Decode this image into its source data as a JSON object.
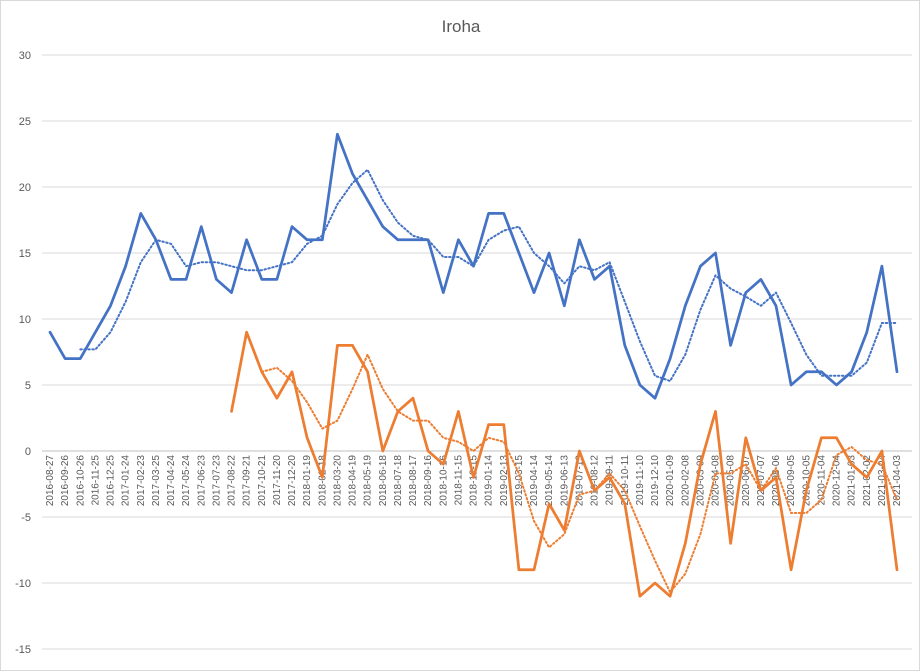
{
  "chart_data": {
    "type": "line",
    "title": "Iroha",
    "xlabel": "",
    "ylabel": "",
    "ylim": [
      -15,
      30
    ],
    "yticks": [
      -15,
      -10,
      -5,
      0,
      5,
      10,
      15,
      20,
      25,
      30
    ],
    "grid": true,
    "legend": "none",
    "x_tick_labels": [
      "2016-08-27",
      "2016-09-26",
      "2016-10-26",
      "2016-11-25",
      "2016-12-25",
      "2017-01-24",
      "2017-02-23",
      "2017-03-25",
      "2017-04-24",
      "2017-05-24",
      "2017-06-23",
      "2017-07-23",
      "2017-08-22",
      "2017-09-21",
      "2017-10-21",
      "2017-11-20",
      "2017-12-20",
      "2018-01-19",
      "2018-02-18",
      "2018-03-20",
      "2018-04-19",
      "2018-05-19",
      "2018-06-18",
      "2018-07-18",
      "2018-08-17",
      "2018-09-16",
      "2018-10-16",
      "2018-11-15",
      "2018-12-15",
      "2019-01-14",
      "2019-02-13",
      "2019-03-15",
      "2019-04-14",
      "2019-05-14",
      "2019-06-13",
      "2019-07-13",
      "2019-08-12",
      "2019-09-11",
      "2019-10-11",
      "2019-11-10",
      "2019-12-10",
      "2020-01-09",
      "2020-02-08",
      "2020-03-09",
      "2020-04-08",
      "2020-05-08",
      "2020-06-07",
      "2020-07-07",
      "2020-08-06",
      "2020-09-05",
      "2020-10-05",
      "2020-11-04",
      "2020-12-04",
      "2021-01-03",
      "2021-02-02",
      "2021-03-04",
      "2021-04-03"
    ],
    "x_tick_labels_visible": [
      "2016-08-27",
      "2016-09-26",
      "2016-10-26",
      "2016-11-25",
      "2016-12-25",
      "2017-01-24",
      "2017-02-23",
      "2017-03-25",
      "2017-04-24",
      "2017-05-24",
      "2017-06-23",
      "2017-07-23",
      "2017-08-22",
      "2017-09-21",
      "2017-10-21",
      "2017-11-20",
      "2017-12-20",
      "2018-01-19",
      "2018-02-18",
      "2018-03-20",
      "2018-04-19",
      "2018-05-19",
      "2018-06-18",
      "2018-07-18",
      "2018-08-17",
      "2018-09-16",
      "2018-10-16",
      "2018-11-15",
      "2018-12-15",
      "2019-01-14",
      "2019-02-13",
      "2019-03-15",
      "2019-04-14",
      "2019-05-14",
      "2019-06-13",
      "2019-07-13",
      "2019-08-12",
      "2019-09-11",
      "2019-10-11",
      "2019-11-10",
      "2019-12-10",
      "2020-01-09",
      "2020-02-08",
      "2020-03-09",
      "2020-04-08",
      "2020-05-08",
      "2020-06-07",
      "2020-07-07",
      "2020-08-06",
      "2020-09-05",
      "2020-10-05",
      "2020-11-04",
      "2020-12-04",
      "2021-01-03",
      "2021-02-02",
      "2021-03-04",
      "2021-04-03"
    ],
    "series": [
      {
        "color": "#4472C4",
        "style": "solid",
        "values": [
          9,
          7,
          7,
          9,
          11,
          14,
          18,
          16,
          13,
          13,
          17,
          13,
          12,
          16,
          13,
          13,
          17,
          16,
          16,
          24,
          21,
          19,
          17,
          16,
          16,
          16,
          12,
          16,
          14,
          18,
          18,
          15,
          12,
          15,
          11,
          16,
          13,
          14,
          8,
          5,
          4,
          7,
          11,
          14,
          15,
          8,
          12,
          13,
          11,
          5,
          6,
          6,
          5,
          6,
          9,
          14,
          6
        ]
      },
      {
        "color": "#4472C4",
        "style": "dotted",
        "values": [
          null,
          null,
          7.7,
          7.7,
          9,
          11.3,
          14.3,
          16,
          15.7,
          14,
          14.3,
          14.3,
          14,
          13.7,
          13.7,
          14,
          14.3,
          15.7,
          16.3,
          18.7,
          20.3,
          21.3,
          19,
          17.3,
          16.3,
          16,
          14.7,
          14.7,
          14,
          16,
          16.7,
          17,
          15,
          14,
          12.7,
          14,
          13.7,
          14.3,
          11.3,
          8.3,
          5.7,
          5.3,
          7.3,
          10.7,
          13.3,
          12.3,
          11.7,
          11,
          12,
          9.7,
          7.3,
          5.7,
          5.7,
          5.7,
          6.7,
          9.7,
          9.7
        ]
      },
      {
        "color": "#ED7D31",
        "style": "solid",
        "values": [
          null,
          null,
          null,
          null,
          null,
          null,
          null,
          null,
          null,
          null,
          null,
          null,
          3,
          9,
          6,
          4,
          6,
          1,
          -2,
          8,
          8,
          6,
          0,
          3,
          4,
          0,
          -1,
          3,
          -2,
          2,
          2,
          -9,
          -9,
          -4,
          -6,
          0,
          -3,
          -2,
          -4,
          -11,
          -10,
          -11,
          -7,
          -1,
          3,
          -7,
          1,
          -3,
          -2,
          -9,
          -3,
          1,
          1,
          -1,
          -2,
          0,
          -9
        ]
      },
      {
        "color": "#ED7D31",
        "style": "dotted",
        "values": [
          null,
          null,
          null,
          null,
          null,
          null,
          null,
          null,
          null,
          null,
          null,
          null,
          null,
          null,
          6,
          6.3,
          5.3,
          3.7,
          1.7,
          2.3,
          4.7,
          7.3,
          4.7,
          3,
          2.3,
          2.3,
          1,
          0.7,
          0,
          1,
          0.7,
          -1.7,
          -5.3,
          -7.3,
          -6.3,
          -3.3,
          -3,
          -1.7,
          -3,
          -5.7,
          -8.3,
          -10.7,
          -9.3,
          -6.3,
          -1.7,
          -1.7,
          -1,
          -3,
          -1.3,
          -4.7,
          -4.7,
          -3.7,
          -0.3,
          0.3,
          -0.7,
          -1,
          -3.7
        ]
      }
    ]
  }
}
